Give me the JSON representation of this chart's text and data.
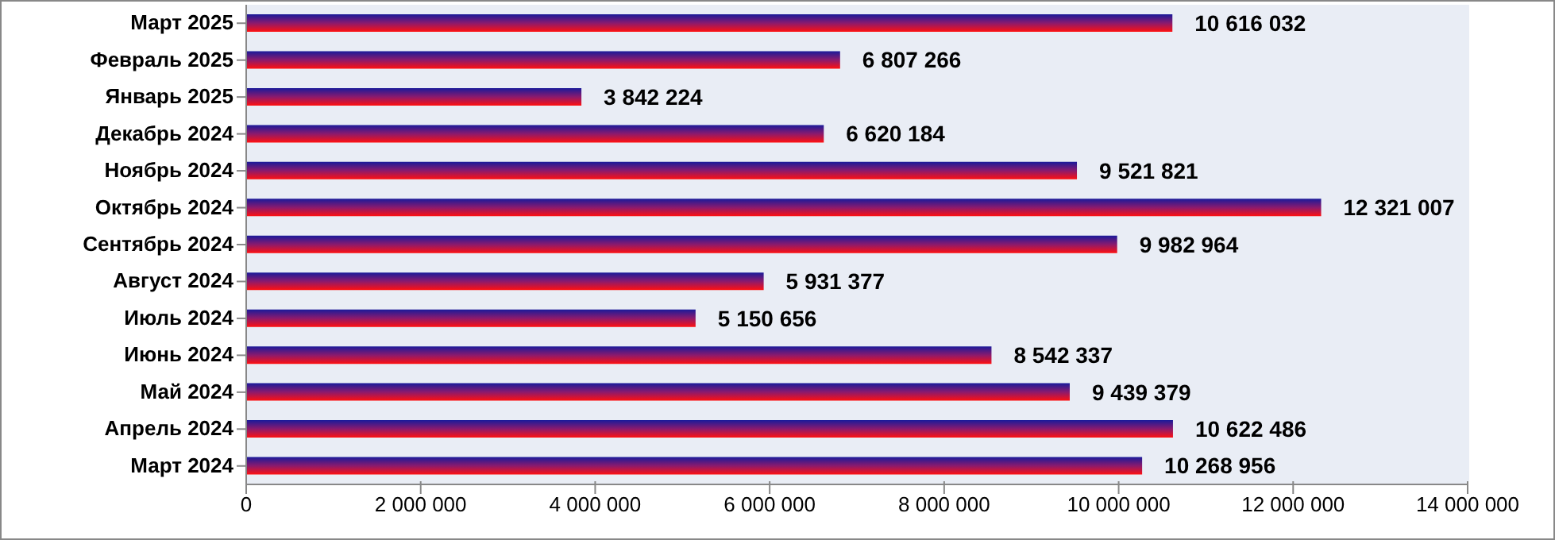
{
  "chart_data": {
    "type": "bar",
    "orientation": "horizontal",
    "categories": [
      "Март 2025",
      "Февраль 2025",
      "Январь 2025",
      "Декабрь 2024",
      "Ноябрь 2024",
      "Октябрь 2024",
      "Сентябрь 2024",
      "Август 2024",
      "Июль 2024",
      "Июнь 2024",
      "Май 2024",
      "Апрель 2024",
      "Март 2024"
    ],
    "values": [
      10616032,
      6807266,
      3842224,
      6620184,
      9521821,
      12321007,
      9982964,
      5931377,
      5150656,
      8542337,
      9439379,
      10622486,
      10268956
    ],
    "value_labels": [
      "10 616 032",
      "6 807 266",
      "3 842 224",
      "6 620 184",
      "9 521 821",
      "12 321 007",
      "9 982 964",
      "5 931 377",
      "5 150 656",
      "8 542 337",
      "9 439 379",
      "10 622 486",
      "10 268 956"
    ],
    "color": "#8a1a6e",
    "xlim": [
      0,
      14000000
    ],
    "xticks": [
      0,
      {
        "value": 2000000,
        "label": "2 000 000"
      },
      {
        "value": 4000000,
        "label": "4 000 000"
      },
      {
        "value": 6000000,
        "label": "6 000 000"
      },
      {
        "value": 8000000,
        "label": "8 000 000"
      },
      {
        "value": 10000000,
        "label": "10 000 000"
      },
      {
        "value": 12000000,
        "label": "12 000 000"
      },
      {
        "value": 14000000,
        "label": "14 000 000"
      }
    ],
    "grid": "x"
  }
}
